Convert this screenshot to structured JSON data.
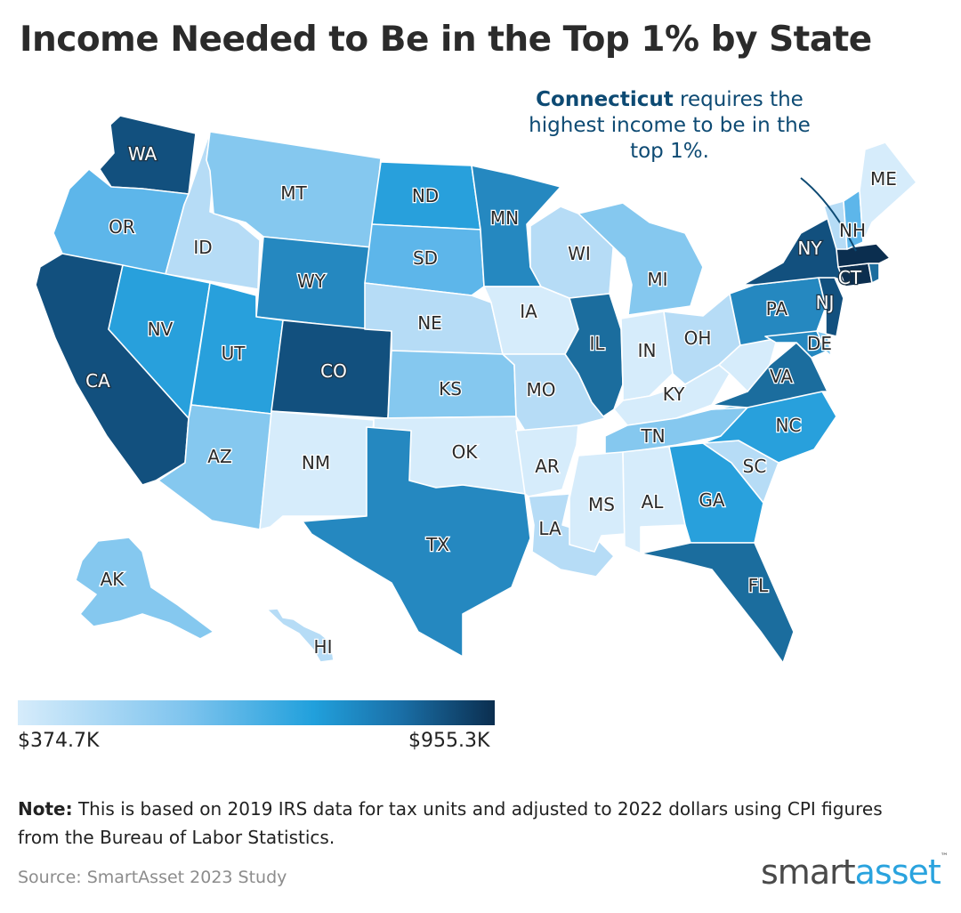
{
  "title": "Income Needed to Be in the Top 1% by State",
  "callout": {
    "bold": "Connecticut",
    "rest_line1": " requires the",
    "line2": "highest income to be in the",
    "line3": "top 1%."
  },
  "legend": {
    "min_label": "$374.7K",
    "max_label": "$955.3K",
    "min_color": "#d6ecfb",
    "max_color": "#0b2e4f"
  },
  "note": {
    "label": "Note:",
    "text": " This is based on 2019 IRS data for tax units and adjusted to 2022 dollars using CPI figures from the Bureau of Labor Statistics."
  },
  "source": "Source: SmartAsset 2023 Study",
  "logo": {
    "part1": "smart",
    "part2": "asset",
    "tm": "™"
  },
  "colors": {
    "c1": "#d6ecfb",
    "c2": "#b6dcf6",
    "c3": "#85c8ef",
    "c4": "#5db6ea",
    "c5": "#28a0dc",
    "c6": "#2588c0",
    "c7": "#1b6d9e",
    "c8": "#12507e",
    "c9": "#0b2e4f"
  },
  "states": {
    "WA": {
      "label": "WA",
      "tier": "c8"
    },
    "OR": {
      "label": "OR",
      "tier": "c4"
    },
    "CA": {
      "label": "CA",
      "tier": "c8"
    },
    "ID": {
      "label": "ID",
      "tier": "c2"
    },
    "NV": {
      "label": "NV",
      "tier": "c5"
    },
    "MT": {
      "label": "MT",
      "tier": "c3"
    },
    "WY": {
      "label": "WY",
      "tier": "c6"
    },
    "UT": {
      "label": "UT",
      "tier": "c5"
    },
    "AZ": {
      "label": "AZ",
      "tier": "c3"
    },
    "CO": {
      "label": "CO",
      "tier": "c8"
    },
    "NM": {
      "label": "NM",
      "tier": "c1"
    },
    "ND": {
      "label": "ND",
      "tier": "c5"
    },
    "SD": {
      "label": "SD",
      "tier": "c4"
    },
    "NE": {
      "label": "NE",
      "tier": "c2"
    },
    "KS": {
      "label": "KS",
      "tier": "c3"
    },
    "OK": {
      "label": "OK",
      "tier": "c1"
    },
    "TX": {
      "label": "TX",
      "tier": "c6"
    },
    "MN": {
      "label": "MN",
      "tier": "c6"
    },
    "IA": {
      "label": "IA",
      "tier": "c1"
    },
    "MO": {
      "label": "MO",
      "tier": "c2"
    },
    "AR": {
      "label": "AR",
      "tier": "c1"
    },
    "LA": {
      "label": "LA",
      "tier": "c2"
    },
    "WI": {
      "label": "WI",
      "tier": "c2"
    },
    "IL": {
      "label": "IL",
      "tier": "c7"
    },
    "MI": {
      "label": "MI",
      "tier": "c3"
    },
    "IN": {
      "label": "IN",
      "tier": "c1"
    },
    "OH": {
      "label": "OH",
      "tier": "c2"
    },
    "KY": {
      "label": "KY",
      "tier": "c1"
    },
    "TN": {
      "label": "TN",
      "tier": "c3"
    },
    "MS": {
      "label": "MS",
      "tier": "c1"
    },
    "AL": {
      "label": "AL",
      "tier": "c1"
    },
    "GA": {
      "label": "GA",
      "tier": "c5"
    },
    "FL": {
      "label": "FL",
      "tier": "c7"
    },
    "SC": {
      "label": "SC",
      "tier": "c2"
    },
    "NC": {
      "label": "NC",
      "tier": "c5"
    },
    "VA": {
      "label": "VA",
      "tier": "c7"
    },
    "WV": {
      "label": "",
      "tier": "c1"
    },
    "PA": {
      "label": "PA",
      "tier": "c6"
    },
    "NY": {
      "label": "NY",
      "tier": "c8"
    },
    "NJ": {
      "label": "NJ",
      "tier": "c8"
    },
    "DE": {
      "label": "DE",
      "tier": "c3"
    },
    "MD": {
      "label": "",
      "tier": "c6"
    },
    "CT": {
      "label": "CT",
      "tier": "c9"
    },
    "MA": {
      "label": "",
      "tier": "c9"
    },
    "RI": {
      "label": "",
      "tier": "c7"
    },
    "VT": {
      "label": "",
      "tier": "c2"
    },
    "NH": {
      "label": "NH",
      "tier": "c4"
    },
    "ME": {
      "label": "ME",
      "tier": "c1"
    },
    "AK": {
      "label": "AK",
      "tier": "c3"
    },
    "HI": {
      "label": "HI",
      "tier": "c2"
    }
  }
}
